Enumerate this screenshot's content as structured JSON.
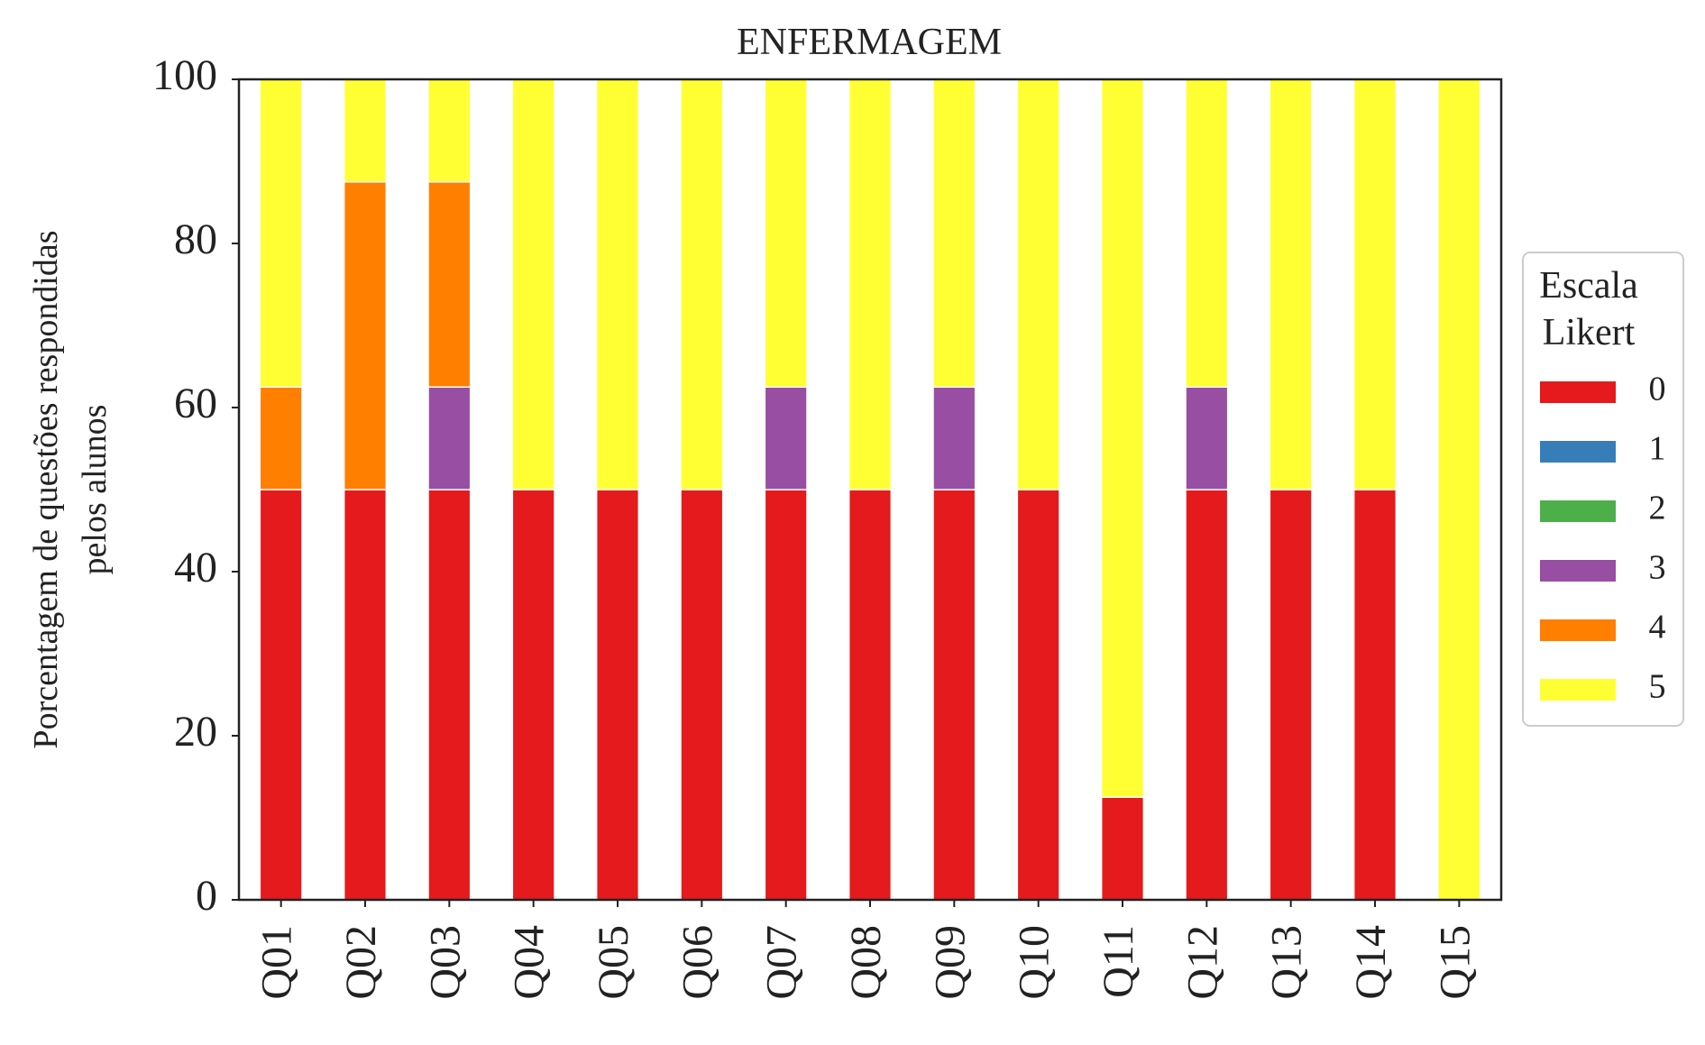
{
  "chart_data": {
    "type": "bar",
    "stacked": true,
    "title": "ENFERMAGEM",
    "xlabel": "",
    "ylabel": [
      "Porcentagem de questões respondidas",
      "pelos alunos"
    ],
    "ylim": [
      0,
      100
    ],
    "yticks": [
      0,
      20,
      40,
      60,
      80,
      100
    ],
    "grid": false,
    "legend": {
      "title": [
        "Escala",
        "Likert"
      ],
      "placement": "center-right outside"
    },
    "categories": [
      "Q01",
      "Q02",
      "Q03",
      "Q04",
      "Q05",
      "Q06",
      "Q07",
      "Q08",
      "Q09",
      "Q10",
      "Q11",
      "Q12",
      "Q13",
      "Q14",
      "Q15"
    ],
    "series": [
      {
        "name": "0",
        "color": "#e41a1c",
        "values": [
          50,
          50,
          50,
          50,
          50,
          50,
          50,
          50,
          50,
          50,
          12.5,
          50,
          50,
          50,
          0
        ]
      },
      {
        "name": "1",
        "color": "#377eb8",
        "values": [
          0,
          0,
          0,
          0,
          0,
          0,
          0,
          0,
          0,
          0,
          0,
          0,
          0,
          0,
          0
        ]
      },
      {
        "name": "2",
        "color": "#4daf4a",
        "values": [
          0,
          0,
          0,
          0,
          0,
          0,
          0,
          0,
          0,
          0,
          0,
          0,
          0,
          0,
          0
        ]
      },
      {
        "name": "3",
        "color": "#984ea3",
        "values": [
          0,
          0,
          12.5,
          0,
          0,
          0,
          12.5,
          0,
          12.5,
          0,
          0,
          12.5,
          0,
          0,
          0
        ]
      },
      {
        "name": "4",
        "color": "#ff7f00",
        "values": [
          12.5,
          37.5,
          25,
          0,
          0,
          0,
          0,
          0,
          0,
          0,
          0,
          0,
          0,
          0,
          0
        ]
      },
      {
        "name": "5",
        "color": "#ffff33",
        "values": [
          37.5,
          12.5,
          12.5,
          50,
          50,
          50,
          37.5,
          50,
          37.5,
          50,
          87.5,
          37.5,
          50,
          50,
          100
        ]
      }
    ]
  }
}
